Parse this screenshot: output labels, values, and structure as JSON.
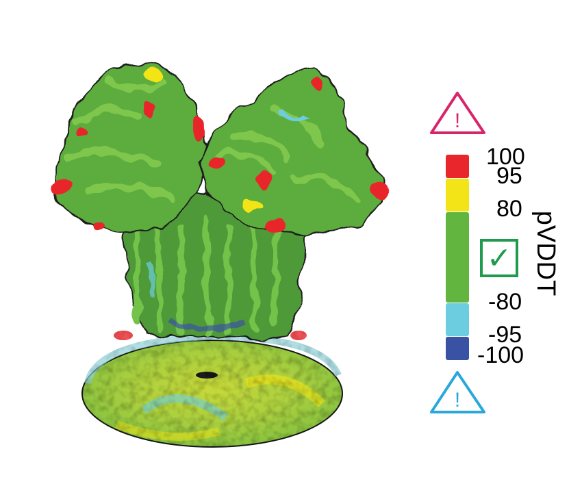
{
  "colors": {
    "red": "#e8262b",
    "yellow": "#f3e418",
    "green": "#62b53f",
    "cyan": "#6dcde0",
    "blue": "#3a52a3",
    "warning_top": "#d8246a",
    "warning_bottom": "#2aa8d9",
    "check": "#1f9b4f"
  },
  "legend": {
    "axis_label": "pVDDT",
    "ticks": [
      "100",
      "95",
      "80",
      "-80",
      "-95",
      "-100"
    ],
    "segments": [
      {
        "from": 95,
        "to": 100,
        "color": "#e8262b"
      },
      {
        "from": 80,
        "to": 95,
        "color": "#f3e418"
      },
      {
        "from": -80,
        "to": 80,
        "color": "#62b53f"
      },
      {
        "from": -95,
        "to": -80,
        "color": "#6dcde0"
      },
      {
        "from": -100,
        "to": -95,
        "color": "#3a52a3"
      }
    ]
  },
  "icons": {
    "top": "warning-triangle-icon",
    "middle": "checkmark-box-icon",
    "bottom": "warning-triangle-icon",
    "exclamation": "!",
    "check_mark": "✓"
  }
}
